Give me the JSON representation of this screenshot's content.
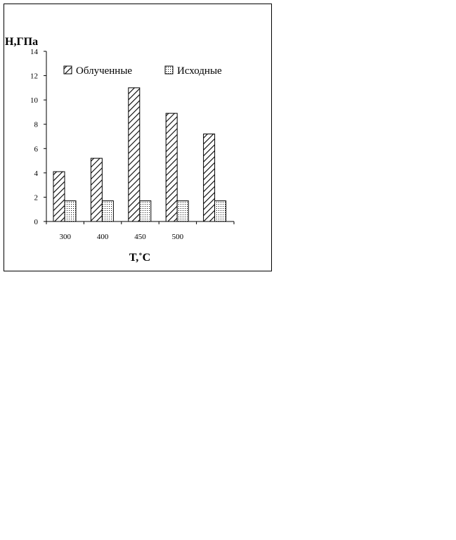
{
  "chart_data": {
    "type": "bar",
    "ylabel": "H,ГПа",
    "xlabel": "T,˚C",
    "categories": [
      "300",
      "400",
      "450",
      "500",
      ""
    ],
    "ylim": [
      0,
      14
    ],
    "yticks": [
      0,
      2,
      4,
      6,
      8,
      10,
      12,
      14
    ],
    "grid": false,
    "legend_position": "top",
    "series": [
      {
        "name": "Облученные",
        "pattern": "diagonal-hatch",
        "color": "#000000",
        "values": [
          4.1,
          5.2,
          11.0,
          8.9,
          7.2
        ]
      },
      {
        "name": "Исходные",
        "pattern": "dots",
        "color": "#000000",
        "values": [
          1.7,
          1.7,
          1.7,
          1.7,
          1.7
        ]
      }
    ]
  }
}
